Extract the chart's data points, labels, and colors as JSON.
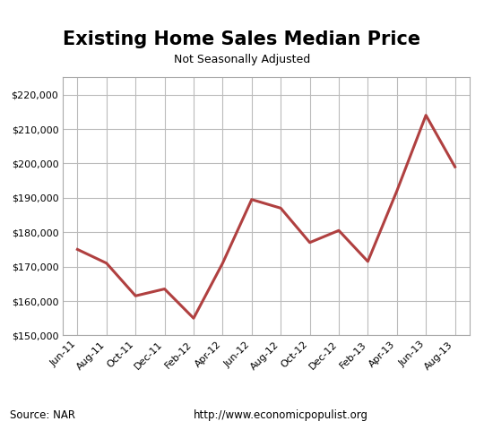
{
  "title": "Existing Home Sales Median Price",
  "subtitle": "Not Seasonally Adjusted",
  "source_text": "Source: NAR",
  "url_text": "http://www.economicpopulist.org",
  "labels": [
    "Jun-11",
    "Aug-11",
    "Oct-11",
    "Dec-11",
    "Feb-12",
    "Apr-12",
    "Jun-12",
    "Aug-12",
    "Oct-12",
    "Dec-12",
    "Feb-13",
    "Apr-13",
    "Jun-13",
    "Aug-13"
  ],
  "values": [
    175000,
    171000,
    161500,
    163500,
    155000,
    171000,
    189500,
    187000,
    177000,
    180500,
    171500,
    192000,
    214000,
    199000
  ],
  "line_color": "#b04040",
  "line_width": 2.2,
  "ylim": [
    150000,
    225000
  ],
  "yticks": [
    150000,
    160000,
    170000,
    180000,
    190000,
    200000,
    210000,
    220000
  ],
  "grid_color": "#bbbbbb",
  "bg_color": "#ffffff",
  "title_fontsize": 15,
  "subtitle_fontsize": 9,
  "tick_fontsize": 8,
  "source_fontsize": 8.5
}
